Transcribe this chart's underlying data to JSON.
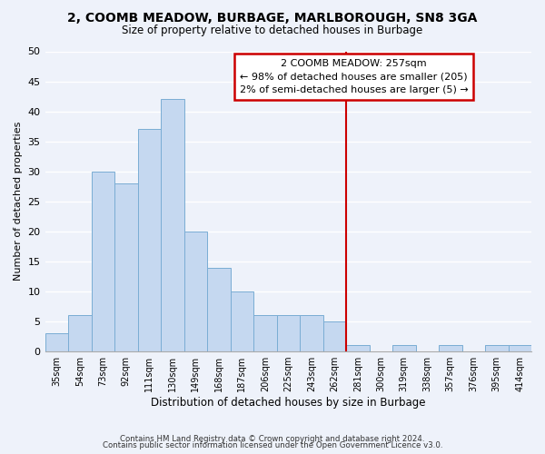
{
  "title": "2, COOMB MEADOW, BURBAGE, MARLBOROUGH, SN8 3GA",
  "subtitle": "Size of property relative to detached houses in Burbage",
  "xlabel": "Distribution of detached houses by size in Burbage",
  "ylabel": "Number of detached properties",
  "bin_labels": [
    "35sqm",
    "54sqm",
    "73sqm",
    "92sqm",
    "111sqm",
    "130sqm",
    "149sqm",
    "168sqm",
    "187sqm",
    "206sqm",
    "225sqm",
    "243sqm",
    "262sqm",
    "281sqm",
    "300sqm",
    "319sqm",
    "338sqm",
    "357sqm",
    "376sqm",
    "395sqm",
    "414sqm"
  ],
  "bar_values": [
    3,
    6,
    30,
    28,
    37,
    42,
    20,
    14,
    10,
    6,
    6,
    6,
    5,
    1,
    0,
    1,
    0,
    1,
    0,
    1,
    1
  ],
  "bar_color": "#c5d8f0",
  "bar_edge_color": "#7aadd4",
  "ylim": [
    0,
    50
  ],
  "yticks": [
    0,
    5,
    10,
    15,
    20,
    25,
    30,
    35,
    40,
    45,
    50
  ],
  "vline_index": 12,
  "vline_color": "#cc0000",
  "annotation_title": "2 COOMB MEADOW: 257sqm",
  "annotation_line1": "← 98% of detached houses are smaller (205)",
  "annotation_line2": "2% of semi-detached houses are larger (5) →",
  "footer1": "Contains HM Land Registry data © Crown copyright and database right 2024.",
  "footer2": "Contains public sector information licensed under the Open Government Licence v3.0.",
  "background_color": "#eef2fa",
  "grid_color": "#ffffff"
}
